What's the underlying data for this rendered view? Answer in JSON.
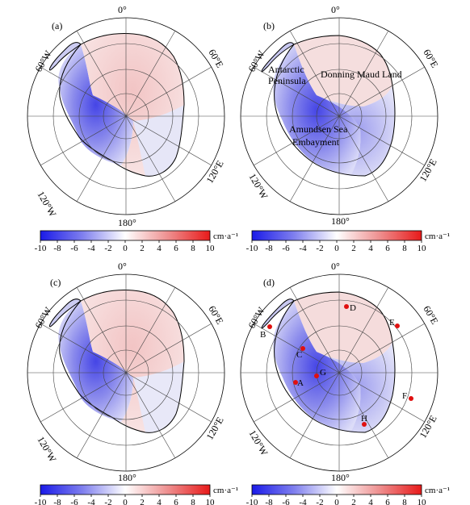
{
  "panels": [
    {
      "label": "(a)"
    },
    {
      "label": "(b)",
      "region_labels": [
        "Antarctic",
        "Peninsula",
        "Donning Maud Land",
        "Amundsen Sea",
        "Embayment"
      ]
    },
    {
      "label": "(c)"
    },
    {
      "label": "(d)",
      "sites": [
        "D",
        "E",
        "B",
        "C",
        "G",
        "A",
        "F",
        "H"
      ]
    }
  ],
  "graticule": {
    "top": "0°",
    "bottom": "180°",
    "left_upper": "60°W",
    "left_lower": "120°W",
    "right_upper": "60°E",
    "right_lower": "120°E"
  },
  "colorbar": {
    "ticks": [
      "-10",
      "-8",
      "-6",
      "-4",
      "-2",
      "0",
      "2",
      "4",
      "6",
      "8",
      "10"
    ],
    "unit": "cm·a⁻¹",
    "colors": [
      "#1f1fe6",
      "#ffffff",
      "#e61f1f"
    ]
  },
  "site_color": "#e01010"
}
